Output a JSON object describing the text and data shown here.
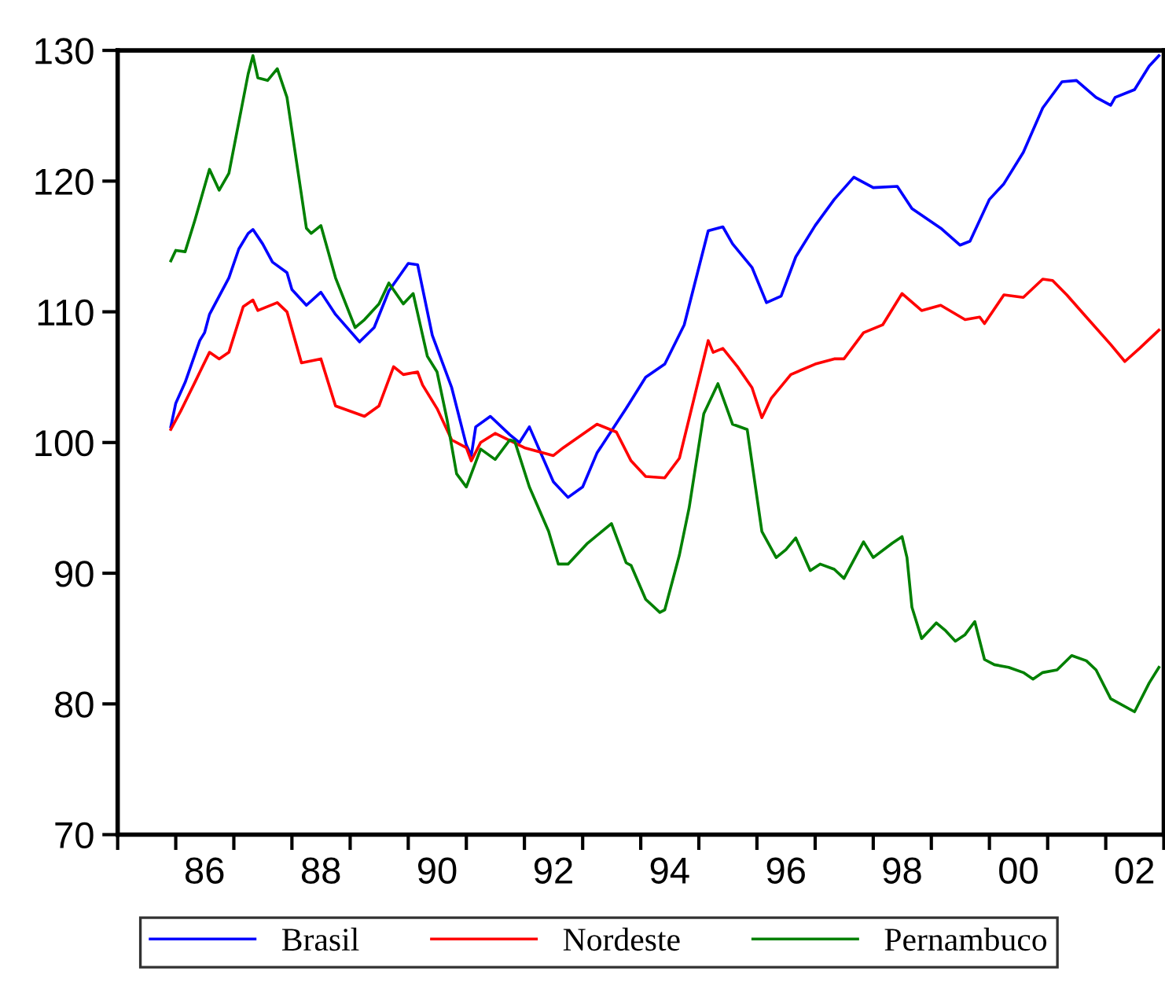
{
  "chart_data": {
    "type": "line",
    "xlim": [
      "1985-01",
      "2003-01"
    ],
    "ylim": [
      70,
      130
    ],
    "yticks": [
      70,
      80,
      90,
      100,
      110,
      120,
      130
    ],
    "xticks": [
      {
        "value": "1985-01",
        "label": null
      },
      {
        "value": "1986-01",
        "label": null
      },
      {
        "value": "1987-01",
        "label": null
      },
      {
        "value": "1988-01",
        "label": null
      },
      {
        "value": "1989-01",
        "label": null
      },
      {
        "value": "1990-01",
        "label": null
      },
      {
        "value": "1991-01",
        "label": null
      },
      {
        "value": "1992-01",
        "label": null
      },
      {
        "value": "1993-01",
        "label": null
      },
      {
        "value": "1994-01",
        "label": null
      },
      {
        "value": "1995-01",
        "label": null
      },
      {
        "value": "1996-01",
        "label": null
      },
      {
        "value": "1997-01",
        "label": null
      },
      {
        "value": "1998-01",
        "label": null
      },
      {
        "value": "1999-01",
        "label": null
      },
      {
        "value": "2000-01",
        "label": null
      },
      {
        "value": "2001-01",
        "label": null
      },
      {
        "value": "2002-01",
        "label": null
      },
      {
        "value": "2003-01",
        "label": null
      },
      {
        "value": "1986-07",
        "label": "86"
      },
      {
        "value": "1988-07",
        "label": "88"
      },
      {
        "value": "1990-07",
        "label": "90"
      },
      {
        "value": "1992-07",
        "label": "92"
      },
      {
        "value": "1994-07",
        "label": "94"
      },
      {
        "value": "1996-07",
        "label": "96"
      },
      {
        "value": "1998-07",
        "label": "98"
      },
      {
        "value": "2000-07",
        "label": "00"
      },
      {
        "value": "2002-07",
        "label": "02"
      }
    ],
    "grid": false,
    "legend": "bottom",
    "line_style": "solid",
    "marker": "none",
    "series": [
      {
        "name": "Brasil",
        "color": "#0000ff",
        "x": [
          "1985-12",
          "1986-01",
          "1986-03",
          "1986-06",
          "1986-07",
          "1986-08",
          "1986-12",
          "1987-02",
          "1987-04",
          "1987-05",
          "1987-07",
          "1987-09",
          "1987-12",
          "1988-01",
          "1988-04",
          "1988-07",
          "1988-10",
          "1989-03",
          "1989-06",
          "1989-09",
          "1990-01",
          "1990-03",
          "1990-06",
          "1990-10",
          "1991-01",
          "1991-02",
          "1991-03",
          "1991-06",
          "1991-10",
          "1991-12",
          "1992-02",
          "1992-07",
          "1992-10",
          "1993-01",
          "1993-04",
          "1993-10",
          "1994-02",
          "1994-06",
          "1994-10",
          "1995-03",
          "1995-06",
          "1995-08",
          "1995-12",
          "1996-03",
          "1996-06",
          "1996-09",
          "1997-01",
          "1997-05",
          "1997-09",
          "1998-01",
          "1998-06",
          "1998-09",
          "1999-03",
          "1999-07",
          "1999-09",
          "2000-01",
          "2000-04",
          "2000-08",
          "2000-12",
          "2001-04",
          "2001-07",
          "2001-11",
          "2002-02",
          "2002-03",
          "2002-07",
          "2002-10",
          "2002-12"
        ],
        "values": [
          101.2,
          103.0,
          104.6,
          107.8,
          108.4,
          109.8,
          112.6,
          114.8,
          116.0,
          116.3,
          115.2,
          113.8,
          113.0,
          111.7,
          110.5,
          111.5,
          109.8,
          107.7,
          108.8,
          111.6,
          113.7,
          113.6,
          108.2,
          104.2,
          99.8,
          99.0,
          101.2,
          102.0,
          100.6,
          100.0,
          101.2,
          97.0,
          95.8,
          96.6,
          99.2,
          102.6,
          105.0,
          106.0,
          109.0,
          116.2,
          116.5,
          115.2,
          113.4,
          110.7,
          111.2,
          114.2,
          116.6,
          118.6,
          120.3,
          119.5,
          119.6,
          117.9,
          116.4,
          115.1,
          115.4,
          118.6,
          119.8,
          122.2,
          125.6,
          127.6,
          127.7,
          126.4,
          125.8,
          126.4,
          127.0,
          128.8,
          129.6
        ]
      },
      {
        "name": "Nordeste",
        "color": "#ff0000",
        "x": [
          "1985-12",
          "1986-02",
          "1986-05",
          "1986-08",
          "1986-10",
          "1986-12",
          "1987-03",
          "1987-05",
          "1987-06",
          "1987-10",
          "1987-12",
          "1988-03",
          "1988-07",
          "1988-10",
          "1989-04",
          "1989-07",
          "1989-10",
          "1989-12",
          "1990-03",
          "1990-04",
          "1990-07",
          "1990-10",
          "1991-01",
          "1991-02",
          "1991-04",
          "1991-07",
          "1992-01",
          "1992-07",
          "1992-09",
          "1993-04",
          "1993-08",
          "1993-11",
          "1994-02",
          "1994-06",
          "1994-09",
          "1995-03",
          "1995-04",
          "1995-06",
          "1995-09",
          "1995-12",
          "1996-02",
          "1996-04",
          "1996-08",
          "1997-01",
          "1997-05",
          "1997-07",
          "1997-11",
          "1998-03",
          "1998-07",
          "1998-11",
          "1999-03",
          "1999-08",
          "1999-11",
          "1999-12",
          "2000-04",
          "2000-08",
          "2000-12",
          "2001-02",
          "2001-05",
          "2001-09",
          "2002-02",
          "2002-05",
          "2002-08",
          "2002-12"
        ],
        "values": [
          101.0,
          102.4,
          104.6,
          106.9,
          106.4,
          106.9,
          110.4,
          110.9,
          110.1,
          110.7,
          110.0,
          106.1,
          106.4,
          102.8,
          102.0,
          102.8,
          105.8,
          105.2,
          105.4,
          104.4,
          102.6,
          100.2,
          99.6,
          98.6,
          100.0,
          100.7,
          99.6,
          99.0,
          99.6,
          101.4,
          100.8,
          98.6,
          97.4,
          97.3,
          98.8,
          107.8,
          106.9,
          107.2,
          105.8,
          104.2,
          101.9,
          103.4,
          105.2,
          106.0,
          106.4,
          106.4,
          108.4,
          109.0,
          111.4,
          110.1,
          110.5,
          109.4,
          109.6,
          109.1,
          111.3,
          111.1,
          112.5,
          112.4,
          111.3,
          109.6,
          107.5,
          106.2,
          107.2,
          108.6
        ]
      },
      {
        "name": "Pernambuco",
        "color": "#008000",
        "x": [
          "1985-12",
          "1986-01",
          "1986-03",
          "1986-05",
          "1986-08",
          "1986-10",
          "1986-12",
          "1987-04",
          "1987-05",
          "1987-06",
          "1987-08",
          "1987-10",
          "1987-12",
          "1988-04",
          "1988-05",
          "1988-07",
          "1988-10",
          "1989-02",
          "1989-04",
          "1989-07",
          "1989-09",
          "1989-12",
          "1990-02",
          "1990-05",
          "1990-07",
          "1990-09",
          "1990-11",
          "1991-01",
          "1991-04",
          "1991-07",
          "1991-10",
          "1991-11",
          "1992-02",
          "1992-06",
          "1992-08",
          "1992-10",
          "1993-02",
          "1993-07",
          "1993-10",
          "1993-11",
          "1994-02",
          "1994-05",
          "1994-06",
          "1994-09",
          "1994-11",
          "1995-02",
          "1995-05",
          "1995-08",
          "1995-11",
          "1996-02",
          "1996-05",
          "1996-07",
          "1996-09",
          "1996-12",
          "1997-02",
          "1997-05",
          "1997-07",
          "1997-11",
          "1998-01",
          "1998-05",
          "1998-07",
          "1998-08",
          "1998-09",
          "1998-11",
          "1999-02",
          "1999-04",
          "1999-06",
          "1999-08",
          "1999-10",
          "1999-12",
          "2000-02",
          "2000-05",
          "2000-08",
          "2000-10",
          "2000-12",
          "2001-03",
          "2001-06",
          "2001-09",
          "2001-11",
          "2002-02",
          "2002-07",
          "2002-10",
          "2002-12"
        ],
        "values": [
          113.9,
          114.7,
          114.6,
          117.0,
          120.9,
          119.3,
          120.6,
          128.2,
          129.6,
          127.9,
          127.7,
          128.6,
          126.4,
          116.4,
          116.0,
          116.6,
          112.6,
          108.8,
          109.4,
          110.6,
          112.2,
          110.6,
          111.4,
          106.6,
          105.4,
          101.8,
          97.6,
          96.6,
          99.5,
          98.7,
          100.2,
          100.1,
          96.6,
          93.2,
          90.7,
          90.7,
          92.3,
          93.8,
          90.8,
          90.6,
          88.0,
          87.0,
          87.2,
          91.4,
          95.0,
          102.2,
          104.5,
          101.4,
          101.0,
          93.2,
          91.2,
          91.8,
          92.7,
          90.2,
          90.7,
          90.3,
          89.6,
          92.4,
          91.2,
          92.3,
          92.8,
          91.2,
          87.4,
          85.0,
          86.2,
          85.6,
          84.8,
          85.3,
          86.3,
          83.4,
          83.0,
          82.8,
          82.4,
          81.9,
          82.4,
          82.6,
          83.7,
          83.3,
          82.6,
          80.4,
          79.4,
          81.6,
          82.8
        ]
      }
    ]
  }
}
